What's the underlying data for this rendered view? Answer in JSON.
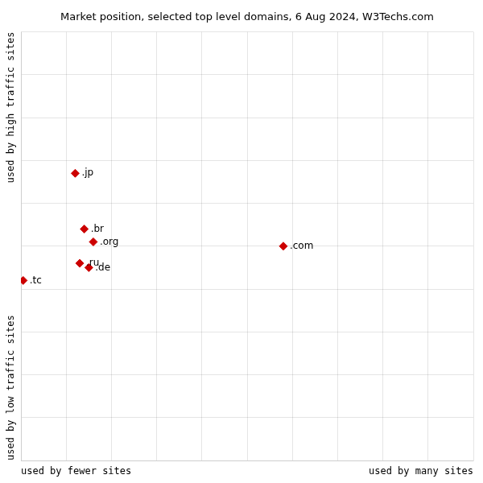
{
  "chart_data": {
    "type": "scatter",
    "title": "Market position, selected top level domains, 6 Aug 2024, W3Techs.com",
    "xlabel_left": "used by fewer sites",
    "xlabel_right": "used by many sites",
    "ylabel_bottom": "used by low traffic sites",
    "ylabel_top": "used by high traffic sites",
    "labels": [
      ".jp",
      ".br",
      ".org",
      ".ru",
      ".de",
      ".tc",
      ".com"
    ],
    "x": [
      12,
      14,
      16,
      13,
      15,
      0.5,
      58
    ],
    "values": [
      67,
      54,
      51,
      46,
      45,
      42,
      50
    ],
    "color": "#cc0000",
    "marker": "diamond",
    "xlim": [
      0,
      100
    ],
    "ylim": [
      0,
      100
    ],
    "xticks": [
      0,
      10,
      20,
      30,
      40,
      50,
      60,
      70,
      80,
      90,
      100
    ],
    "yticks": [
      0,
      10,
      20,
      30,
      40,
      50,
      60,
      70,
      80,
      90,
      100
    ],
    "grid": true,
    "tick_labels": false
  }
}
